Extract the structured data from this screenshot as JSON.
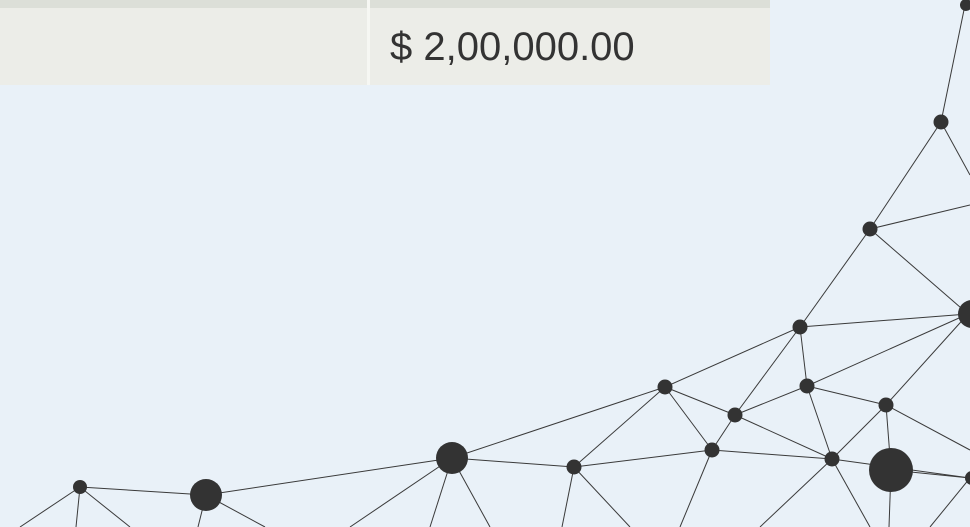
{
  "table": {
    "amount": "$ 2,00,000.00"
  }
}
